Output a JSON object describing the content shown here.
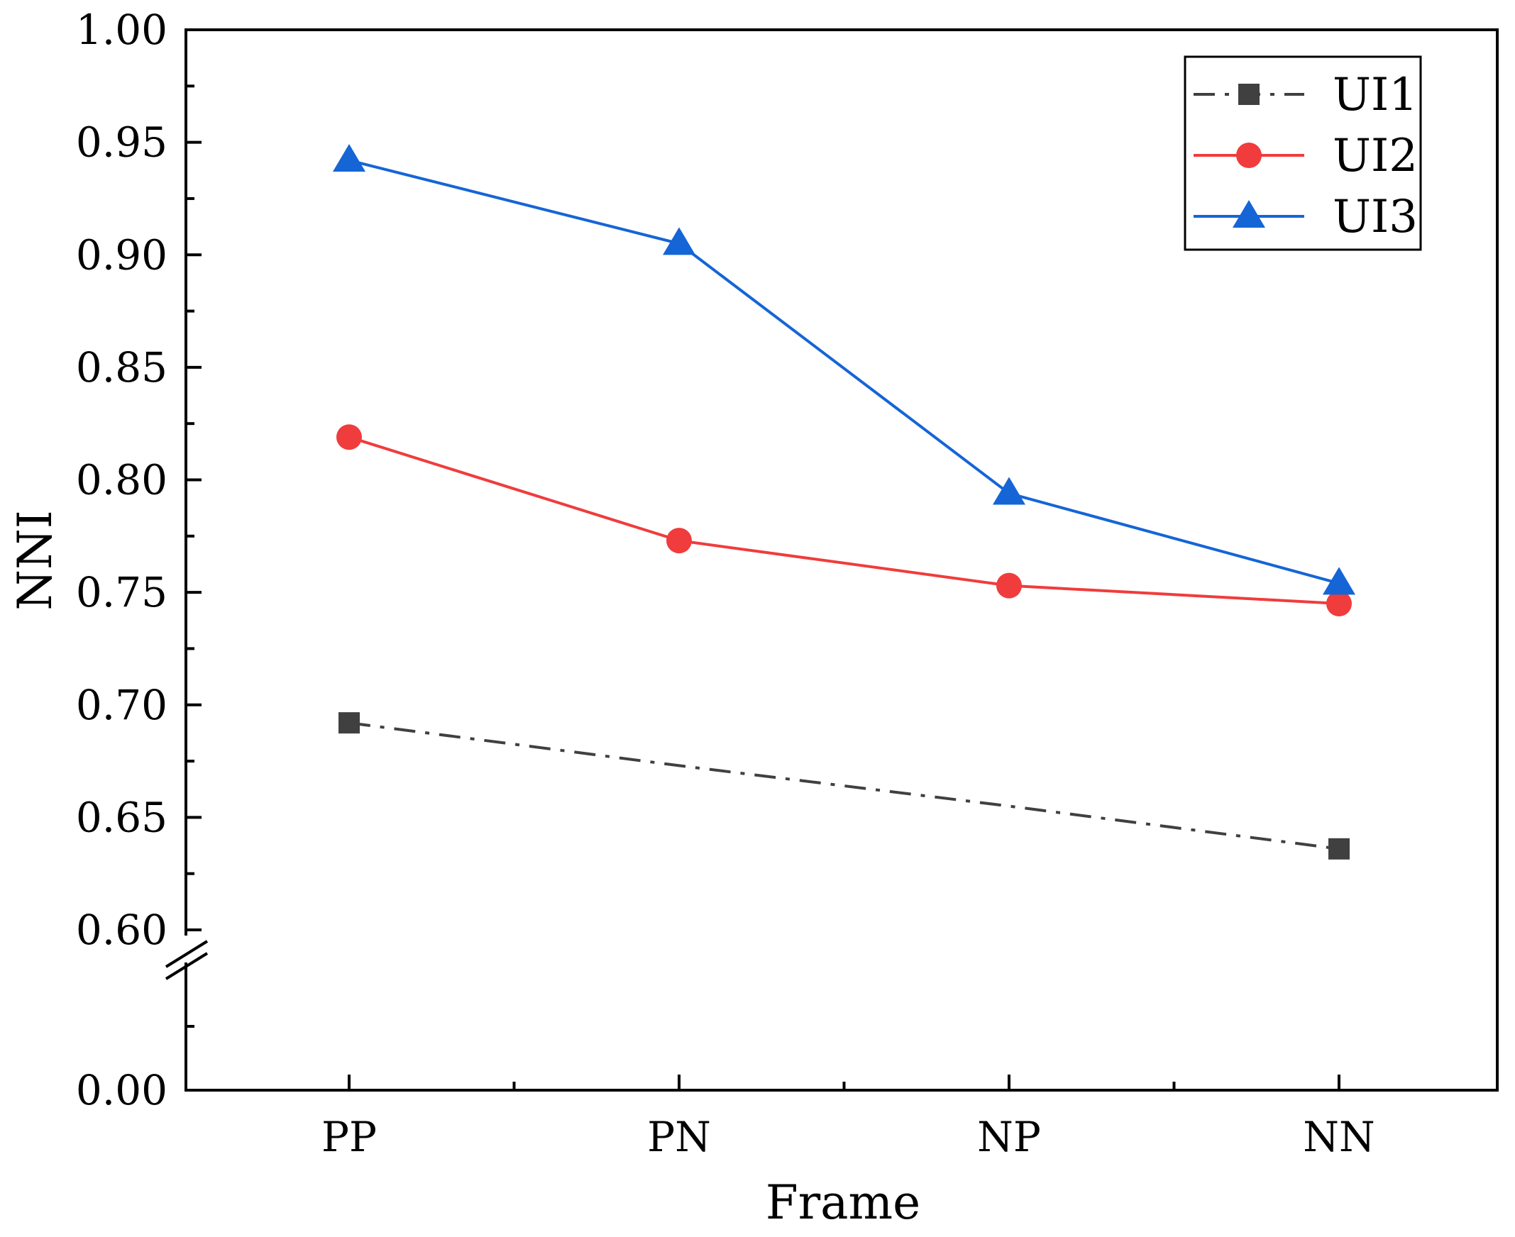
{
  "chart_data": {
    "type": "line",
    "title": "",
    "xlabel": "Frame",
    "ylabel": "NNI",
    "categories": [
      "PP",
      "PN",
      "NP",
      "NN"
    ],
    "yticks": [
      "0.00",
      "0.60",
      "0.65",
      "0.70",
      "0.75",
      "0.80",
      "0.85",
      "0.90",
      "0.95",
      "1.00"
    ],
    "ylim": [
      0.0,
      1.0
    ],
    "y_axis_break": [
      0.0,
      0.6
    ],
    "legend_position": "top-right",
    "series": [
      {
        "name": "UI1",
        "values": [
          0.692,
          0.673,
          0.655,
          0.636
        ],
        "color": "#404040",
        "marker": "square",
        "line_style": "dash-dot"
      },
      {
        "name": "UI2",
        "values": [
          0.819,
          0.773,
          0.753,
          0.745
        ],
        "color": "#f03c3c",
        "marker": "circle",
        "line_style": "solid"
      },
      {
        "name": "UI3",
        "values": [
          0.942,
          0.905,
          0.794,
          0.754
        ],
        "color": "#1565d6",
        "marker": "triangle",
        "line_style": "solid"
      }
    ],
    "markers_shown": [
      [
        true,
        false,
        false,
        true
      ],
      [
        true,
        true,
        true,
        true
      ],
      [
        true,
        true,
        true,
        true
      ]
    ]
  }
}
